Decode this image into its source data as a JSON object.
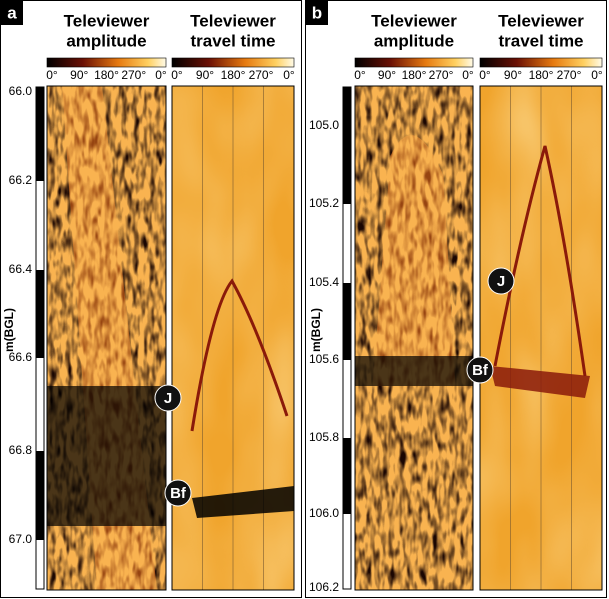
{
  "panels": [
    {
      "label": "a",
      "columns": [
        {
          "title": [
            "Televiewer",
            "amplitude"
          ],
          "scale": [
            "0°",
            "90°",
            "180°",
            "270°",
            "0°"
          ]
        },
        {
          "title": [
            "Televiewer",
            "travel time"
          ],
          "scale": [
            "0°",
            "90°",
            "180°",
            "270°",
            "0°"
          ]
        }
      ],
      "depth_label": "m(BGL)",
      "depth_ticks": [
        "66.0",
        "66.2",
        "66.4",
        "66.6",
        "66.8",
        "67.0"
      ],
      "markers": [
        "J",
        "Bf"
      ]
    },
    {
      "label": "b",
      "columns": [
        {
          "title": [
            "Televiewer",
            "amplitude"
          ],
          "scale": [
            "0°",
            "90°",
            "180°",
            "270°",
            "0°"
          ]
        },
        {
          "title": [
            "Televiewer",
            "travel time"
          ],
          "scale": [
            "0°",
            "90°",
            "180°",
            "270°",
            "0°"
          ]
        }
      ],
      "depth_label": "m(BGL)",
      "depth_ticks": [
        "105.0",
        "105.2",
        "105.4",
        "105.6",
        "105.8",
        "106.0",
        "106.2"
      ],
      "markers": [
        "J",
        "Bf"
      ]
    }
  ]
}
